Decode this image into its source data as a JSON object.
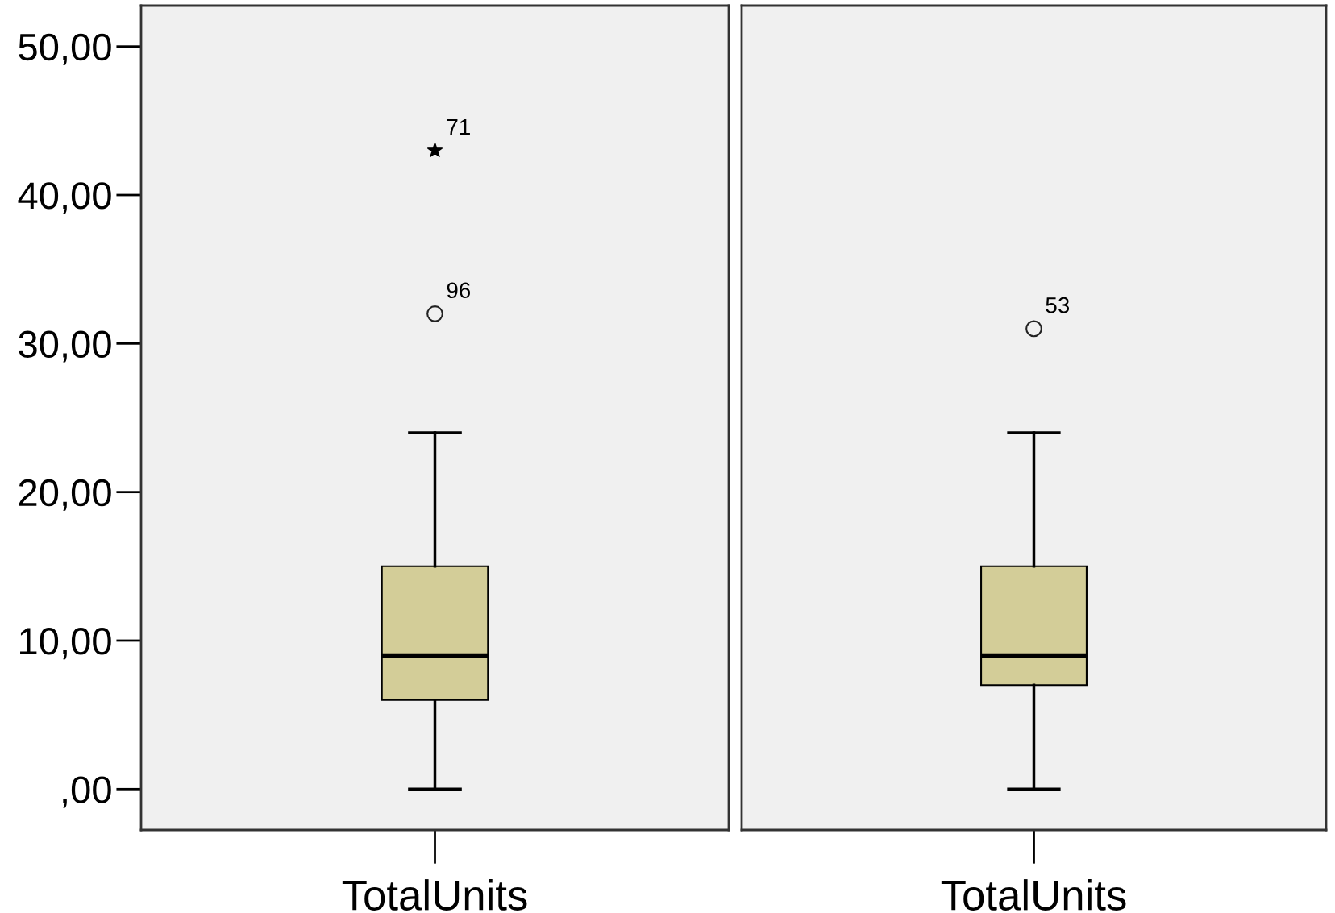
{
  "chart_data": [
    {
      "type": "box",
      "categories": [
        "TotalUnits"
      ],
      "boxes": [
        {
          "low": 0,
          "q1": 6,
          "median": 9,
          "q3": 15,
          "high": 24
        }
      ],
      "color": "#d3cd98",
      "ylim": [
        -2.75,
        52.75
      ],
      "yticks": [
        {
          "value": 0,
          "label": ",00"
        },
        {
          "value": 10,
          "label": "10,00"
        },
        {
          "value": 20,
          "label": "20,00"
        },
        {
          "value": 30,
          "label": "30,00"
        },
        {
          "value": 40,
          "label": "40,00"
        },
        {
          "value": 50,
          "label": "50,00"
        }
      ],
      "series": [
        {
          "type": "scatter",
          "x": [
            "TotalUnits"
          ],
          "values": [
            43
          ],
          "marker": "star",
          "color": "#000000"
        },
        {
          "type": "scatter",
          "x": [
            "TotalUnits"
          ],
          "values": [
            32
          ],
          "marker": "circle",
          "color": "#222222"
        }
      ],
      "annotations": [
        {
          "text": "71",
          "x": "TotalUnits",
          "y": 43
        },
        {
          "text": "96",
          "x": "TotalUnits",
          "y": 32
        }
      ],
      "grid": false
    },
    {
      "type": "box",
      "categories": [
        "TotalUnits"
      ],
      "boxes": [
        {
          "low": 0,
          "q1": 7,
          "median": 9,
          "q3": 15,
          "high": 24
        }
      ],
      "color": "#d3cd98",
      "ylim": [
        -2.75,
        52.75
      ],
      "tick_labels": "x",
      "series": [
        {
          "type": "scatter",
          "x": [
            "TotalUnits"
          ],
          "values": [
            31
          ],
          "marker": "circle",
          "color": "#222222"
        }
      ],
      "annotations": [
        {
          "text": "53",
          "x": "TotalUnits",
          "y": 31
        }
      ],
      "grid": false
    }
  ]
}
